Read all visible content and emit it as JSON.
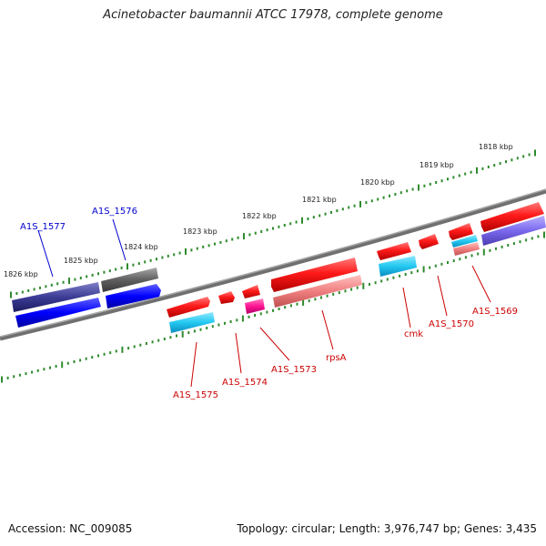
{
  "title": "Acinetobacter baumannii ATCC 17978, complete genome",
  "accession_text": "Accession: NC_009085",
  "topology_text": "Topology: circular; Length: 3,976,747 bp; Genes: 3,435",
  "colors": {
    "backbone": "#808080",
    "tick": "#2e8b2e",
    "label_blue": "#0000cc",
    "label_red": "#cc0000",
    "gene_red": "#ff1a1a",
    "gene_cyan": "#22c8f0",
    "gene_pink": "#f08080",
    "gene_magenta": "#ff1493",
    "gene_navy": "#3c3c96",
    "gene_blue": "#0000ff",
    "gene_gray": "#606060",
    "gene_violet": "#7b68ee"
  },
  "kbp_labels": [
    "1826 kbp",
    "1825 kbp",
    "1824 kbp",
    "1823 kbp",
    "1822 kbp",
    "1821 kbp",
    "1820 kbp",
    "1819 kbp",
    "1818 kbp"
  ],
  "gene_labels": [
    {
      "name": "A1S_1577",
      "color": "blue"
    },
    {
      "name": "A1S_1576",
      "color": "blue"
    },
    {
      "name": "A1S_1575",
      "color": "red"
    },
    {
      "name": "A1S_1574",
      "color": "red"
    },
    {
      "name": "A1S_1573",
      "color": "red"
    },
    {
      "name": "rpsA",
      "color": "red"
    },
    {
      "name": "cmk",
      "color": "red"
    },
    {
      "name": "A1S_1570",
      "color": "red"
    },
    {
      "name": "A1S_1569",
      "color": "red"
    }
  ]
}
